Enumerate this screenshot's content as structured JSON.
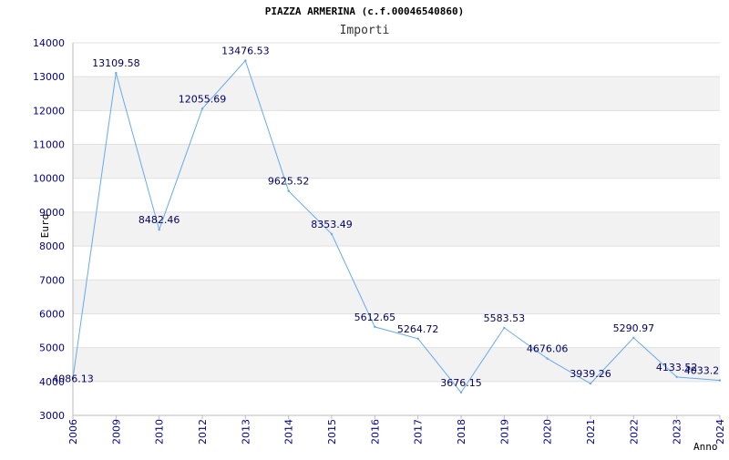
{
  "chart_data": {
    "type": "line",
    "title": "PIAZZA ARMERINA (c.f.00046540860)",
    "subtitle": "Importi",
    "xlabel": "Anno",
    "ylabel": "Euro",
    "x": [
      "2006",
      "2009",
      "2010",
      "2012",
      "2013",
      "2014",
      "2015",
      "2016",
      "2017",
      "2018",
      "2019",
      "2020",
      "2021",
      "2022",
      "2023",
      "2024"
    ],
    "y_ticks": [
      "3000",
      "4000",
      "5000",
      "6000",
      "7000",
      "8000",
      "9000",
      "10000",
      "11000",
      "12000",
      "13000",
      "14000"
    ],
    "ylim": [
      3000,
      14000
    ],
    "grid": true,
    "series": [
      {
        "values": [
          4086.13,
          13109.58,
          8482.46,
          12055.69,
          13476.53,
          9625.52,
          8353.49,
          5612.65,
          5264.72,
          3676.15,
          5583.53,
          4676.06,
          3939.26,
          5290.97,
          4133.52,
          4033.2
        ],
        "labels": [
          "4086.13",
          "13109.58",
          "8482.46",
          "12055.69",
          "13476.53",
          "9625.52",
          "8353.49",
          "5612.65",
          "5264.72",
          "3676.15",
          "5583.53",
          "4676.06",
          "3939.26",
          "5290.97",
          "4133.52",
          "4033.2"
        ]
      }
    ],
    "colors": {
      "line": "#66aaee",
      "band": "#f2f2f2",
      "axis": "#bbbbbb",
      "tick_text": "#000099",
      "label_text": "#000066"
    }
  }
}
